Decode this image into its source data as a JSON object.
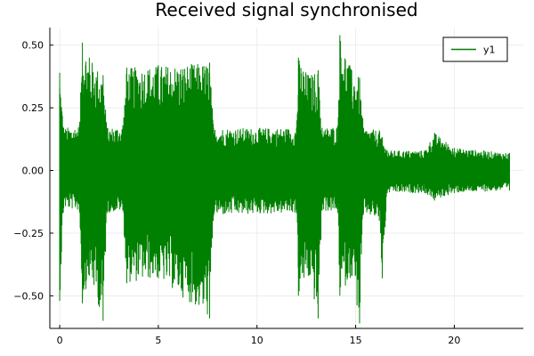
{
  "chart_data": {
    "type": "line",
    "title": "Received signal synchronised",
    "xlabel": "",
    "ylabel": "",
    "xlim": [
      -0.5,
      23.5
    ],
    "ylim": [
      -0.63,
      0.57
    ],
    "x_ticks": [
      0,
      5,
      10,
      15,
      20
    ],
    "x_tick_labels": [
      "0",
      "5",
      "10",
      "15",
      "20"
    ],
    "y_ticks": [
      -0.5,
      -0.25,
      0.0,
      0.25,
      0.5
    ],
    "y_tick_labels": [
      "−0.50",
      "−0.25",
      "0.00",
      "0.25",
      "0.50"
    ],
    "grid": true,
    "legend": {
      "position": "top-right",
      "entries": [
        "y1"
      ]
    },
    "series": [
      {
        "name": "y1",
        "color": "#008000",
        "x_range": [
          0,
          22.8
        ],
        "envelope": [
          {
            "x": 0.0,
            "ymin": -0.52,
            "ymax": 0.39
          },
          {
            "x": 0.2,
            "ymin": -0.15,
            "ymax": 0.17
          },
          {
            "x": 1.0,
            "ymin": -0.16,
            "ymax": 0.18
          },
          {
            "x": 1.15,
            "ymin": -0.53,
            "ymax": 0.51
          },
          {
            "x": 1.5,
            "ymin": -0.42,
            "ymax": 0.45
          },
          {
            "x": 2.2,
            "ymin": -0.6,
            "ymax": 0.38
          },
          {
            "x": 2.4,
            "ymin": -0.17,
            "ymax": 0.17
          },
          {
            "x": 3.2,
            "ymin": -0.16,
            "ymax": 0.18
          },
          {
            "x": 3.4,
            "ymin": -0.45,
            "ymax": 0.41
          },
          {
            "x": 5.0,
            "ymin": -0.43,
            "ymax": 0.42
          },
          {
            "x": 7.6,
            "ymin": -0.59,
            "ymax": 0.43
          },
          {
            "x": 7.8,
            "ymin": -0.18,
            "ymax": 0.17
          },
          {
            "x": 12.0,
            "ymin": -0.17,
            "ymax": 0.17
          },
          {
            "x": 12.1,
            "ymin": -0.5,
            "ymax": 0.45
          },
          {
            "x": 12.6,
            "ymin": -0.42,
            "ymax": 0.38
          },
          {
            "x": 13.1,
            "ymin": -0.59,
            "ymax": 0.4
          },
          {
            "x": 13.3,
            "ymin": -0.16,
            "ymax": 0.17
          },
          {
            "x": 14.1,
            "ymin": -0.17,
            "ymax": 0.18
          },
          {
            "x": 14.2,
            "ymin": -0.5,
            "ymax": 0.54
          },
          {
            "x": 14.8,
            "ymin": -0.42,
            "ymax": 0.4
          },
          {
            "x": 15.2,
            "ymin": -0.61,
            "ymax": 0.37
          },
          {
            "x": 15.4,
            "ymin": -0.17,
            "ymax": 0.17
          },
          {
            "x": 16.2,
            "ymin": -0.2,
            "ymax": 0.16
          },
          {
            "x": 16.35,
            "ymin": -0.43,
            "ymax": 0.13
          },
          {
            "x": 16.6,
            "ymin": -0.09,
            "ymax": 0.08
          },
          {
            "x": 18.5,
            "ymin": -0.09,
            "ymax": 0.08
          },
          {
            "x": 19.0,
            "ymin": -0.12,
            "ymax": 0.15
          },
          {
            "x": 20.0,
            "ymin": -0.09,
            "ymax": 0.09
          },
          {
            "x": 22.8,
            "ymin": -0.08,
            "ymax": 0.07
          }
        ]
      }
    ]
  }
}
